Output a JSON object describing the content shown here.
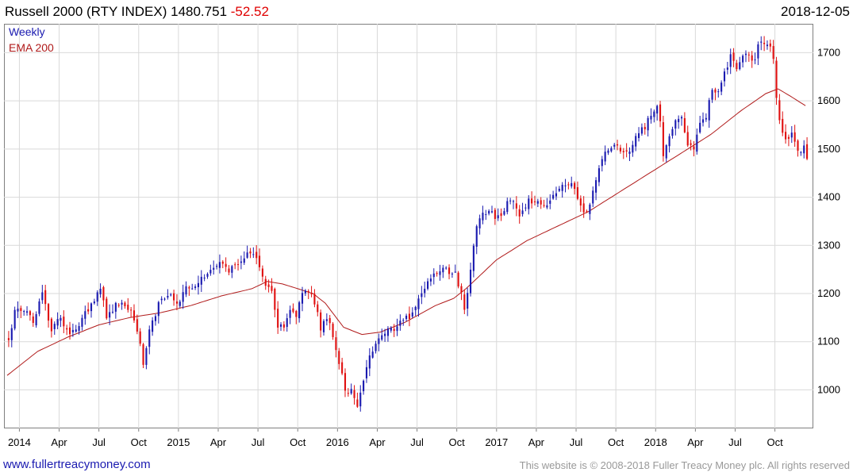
{
  "header": {
    "title": "Russell 2000 (RTY INDEX) 1480.751",
    "change": "-52.52",
    "date": "2018-12-05"
  },
  "legend": {
    "weekly": "Weekly",
    "ema": "EMA 200"
  },
  "footer": {
    "left": "www.fullertreacymoney.com",
    "right": "This website is © 2008-2018 Fuller Treacy Money plc. All rights reserved"
  },
  "colors": {
    "up": "#1a1ab0",
    "down": "#e01010",
    "ema": "#b01a1a",
    "grid": "#d9d9d9"
  },
  "chart_data": {
    "type": "candlestick",
    "title": "Russell 2000 (RTY INDEX)",
    "ylim": [
      920,
      1760
    ],
    "yticks": [
      1000,
      1100,
      1200,
      1300,
      1400,
      1500,
      1600,
      1700
    ],
    "x_range_weeks": [
      0,
      262
    ],
    "xticks": [
      {
        "label": "2014",
        "week": 4
      },
      {
        "label": "Apr",
        "week": 17
      },
      {
        "label": "Jul",
        "week": 30
      },
      {
        "label": "Oct",
        "week": 43
      },
      {
        "label": "2015",
        "week": 56
      },
      {
        "label": "Apr",
        "week": 69
      },
      {
        "label": "Jul",
        "week": 82
      },
      {
        "label": "Oct",
        "week": 95
      },
      {
        "label": "2016",
        "week": 108
      },
      {
        "label": "Apr",
        "week": 121
      },
      {
        "label": "Jul",
        "week": 134
      },
      {
        "label": "Oct",
        "week": 147
      },
      {
        "label": "2017",
        "week": 160
      },
      {
        "label": "Apr",
        "week": 173
      },
      {
        "label": "Jul",
        "week": 186
      },
      {
        "label": "Oct",
        "week": 199
      },
      {
        "label": "2018",
        "week": 212
      },
      {
        "label": "Apr",
        "week": 225
      },
      {
        "label": "Jul",
        "week": 238
      },
      {
        "label": "Oct",
        "week": 251
      }
    ],
    "close_anchors": [
      [
        0,
        1105
      ],
      [
        2,
        1160
      ],
      [
        5,
        1170
      ],
      [
        8,
        1145
      ],
      [
        11,
        1200
      ],
      [
        14,
        1125
      ],
      [
        17,
        1150
      ],
      [
        20,
        1110
      ],
      [
        24,
        1145
      ],
      [
        27,
        1180
      ],
      [
        30,
        1210
      ],
      [
        32,
        1150
      ],
      [
        35,
        1175
      ],
      [
        38,
        1180
      ],
      [
        41,
        1150
      ],
      [
        43,
        1095
      ],
      [
        44,
        1050
      ],
      [
        46,
        1120
      ],
      [
        49,
        1180
      ],
      [
        52,
        1200
      ],
      [
        55,
        1175
      ],
      [
        58,
        1210
      ],
      [
        62,
        1225
      ],
      [
        65,
        1245
      ],
      [
        69,
        1265
      ],
      [
        72,
        1245
      ],
      [
        75,
        1265
      ],
      [
        78,
        1285
      ],
      [
        80,
        1280
      ],
      [
        82,
        1260
      ],
      [
        84,
        1220
      ],
      [
        86,
        1205
      ],
      [
        88,
        1130
      ],
      [
        90,
        1130
      ],
      [
        92,
        1160
      ],
      [
        94,
        1155
      ],
      [
        96,
        1200
      ],
      [
        98,
        1205
      ],
      [
        100,
        1180
      ],
      [
        102,
        1130
      ],
      [
        104,
        1150
      ],
      [
        106,
        1115
      ],
      [
        108,
        1060
      ],
      [
        110,
        995
      ],
      [
        112,
        1000
      ],
      [
        114,
        960
      ],
      [
        116,
        1020
      ],
      [
        118,
        1075
      ],
      [
        120,
        1090
      ],
      [
        122,
        1110
      ],
      [
        124,
        1130
      ],
      [
        126,
        1120
      ],
      [
        128,
        1140
      ],
      [
        130,
        1150
      ],
      [
        132,
        1155
      ],
      [
        134,
        1195
      ],
      [
        136,
        1210
      ],
      [
        138,
        1235
      ],
      [
        140,
        1240
      ],
      [
        142,
        1250
      ],
      [
        144,
        1245
      ],
      [
        146,
        1240
      ],
      [
        148,
        1200
      ],
      [
        149,
        1165
      ],
      [
        151,
        1250
      ],
      [
        153,
        1335
      ],
      [
        155,
        1370
      ],
      [
        157,
        1370
      ],
      [
        159,
        1360
      ],
      [
        161,
        1355
      ],
      [
        163,
        1385
      ],
      [
        165,
        1395
      ],
      [
        167,
        1360
      ],
      [
        170,
        1395
      ],
      [
        173,
        1390
      ],
      [
        175,
        1375
      ],
      [
        178,
        1410
      ],
      [
        181,
        1420
      ],
      [
        184,
        1435
      ],
      [
        187,
        1385
      ],
      [
        189,
        1365
      ],
      [
        191,
        1410
      ],
      [
        193,
        1460
      ],
      [
        195,
        1500
      ],
      [
        198,
        1505
      ],
      [
        201,
        1495
      ],
      [
        203,
        1500
      ],
      [
        205,
        1525
      ],
      [
        208,
        1545
      ],
      [
        210,
        1575
      ],
      [
        212,
        1590
      ],
      [
        213,
        1555
      ],
      [
        214,
        1485
      ],
      [
        216,
        1530
      ],
      [
        218,
        1560
      ],
      [
        220,
        1570
      ],
      [
        222,
        1510
      ],
      [
        224,
        1495
      ],
      [
        226,
        1560
      ],
      [
        228,
        1570
      ],
      [
        230,
        1620
      ],
      [
        232,
        1625
      ],
      [
        234,
        1655
      ],
      [
        236,
        1690
      ],
      [
        238,
        1670
      ],
      [
        240,
        1700
      ],
      [
        242,
        1700
      ],
      [
        244,
        1680
      ],
      [
        245,
        1720
      ],
      [
        247,
        1725
      ],
      [
        249,
        1710
      ],
      [
        250,
        1690
      ],
      [
        251,
        1610
      ],
      [
        252,
        1560
      ],
      [
        254,
        1520
      ],
      [
        256,
        1535
      ],
      [
        258,
        1495
      ],
      [
        260,
        1505
      ],
      [
        261,
        1480
      ]
    ],
    "ema_anchors": [
      [
        0,
        1030
      ],
      [
        10,
        1080
      ],
      [
        20,
        1110
      ],
      [
        30,
        1135
      ],
      [
        40,
        1150
      ],
      [
        50,
        1160
      ],
      [
        60,
        1175
      ],
      [
        70,
        1195
      ],
      [
        80,
        1210
      ],
      [
        85,
        1225
      ],
      [
        90,
        1220
      ],
      [
        100,
        1200
      ],
      [
        104,
        1180
      ],
      [
        110,
        1130
      ],
      [
        116,
        1115
      ],
      [
        122,
        1120
      ],
      [
        130,
        1140
      ],
      [
        140,
        1175
      ],
      [
        146,
        1190
      ],
      [
        150,
        1210
      ],
      [
        160,
        1270
      ],
      [
        170,
        1310
      ],
      [
        180,
        1340
      ],
      [
        190,
        1370
      ],
      [
        200,
        1410
      ],
      [
        210,
        1450
      ],
      [
        220,
        1490
      ],
      [
        230,
        1530
      ],
      [
        240,
        1580
      ],
      [
        248,
        1615
      ],
      [
        252,
        1625
      ],
      [
        256,
        1610
      ],
      [
        261,
        1590
      ]
    ],
    "seed": 20181205
  }
}
